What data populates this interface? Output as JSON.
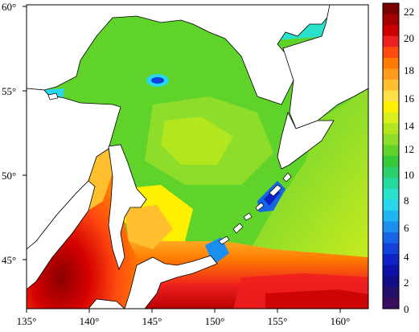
{
  "map": {
    "lon_ticks": [
      "135°",
      "140°",
      "145°",
      "150°",
      "155°",
      "160°"
    ],
    "lat_ticks": [
      "60°",
      "55°",
      "50°",
      "45°"
    ]
  },
  "colorbar": {
    "labels": [
      "22",
      "20",
      "18",
      "16",
      "14",
      "12",
      "10",
      "8",
      "6",
      "4",
      "2",
      "0"
    ],
    "colors": [
      "#7a0000",
      "#a30000",
      "#cc0000",
      "#ee1f1f",
      "#ff4a10",
      "#ff7a00",
      "#ff9c1e",
      "#ffbf2f",
      "#ffe04a",
      "#fff000",
      "#d8ef1a",
      "#b2e61f",
      "#8edd2a",
      "#5fd32a",
      "#36c93a",
      "#2bd06a",
      "#26d99e",
      "#2ae2cc",
      "#28d6ee",
      "#1fb4f2",
      "#1a8ff0",
      "#1565e6",
      "#1240d8",
      "#0f22c5",
      "#0c12a8",
      "#100d86",
      "#240f6a",
      "#3a0e5e"
    ]
  }
}
